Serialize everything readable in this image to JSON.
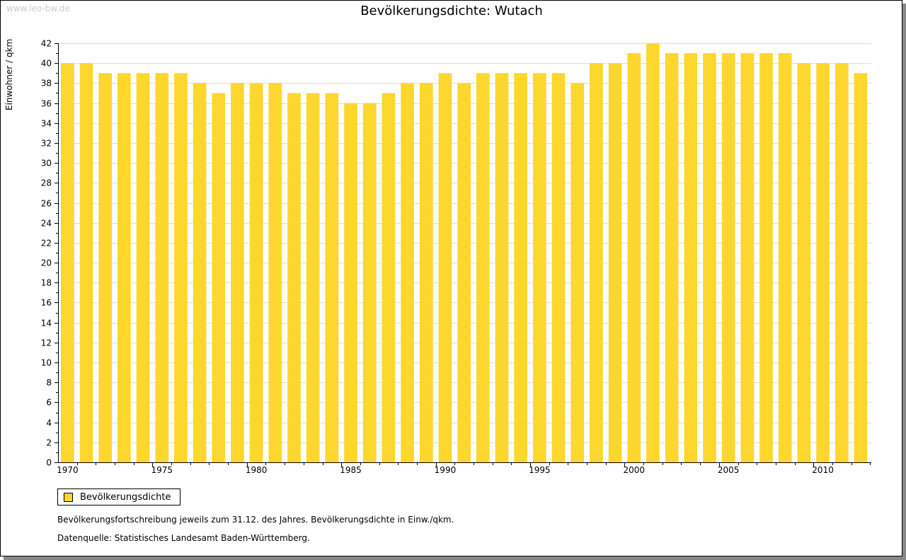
{
  "watermark": "www.leo-bw.de",
  "chart_data": {
    "type": "bar",
    "title": "Bevölkerungsdichte: Wutach",
    "xlabel": "",
    "ylabel": "Einwohner / qkm",
    "ylim": [
      0,
      42
    ],
    "yticks": [
      0,
      2,
      4,
      6,
      8,
      10,
      12,
      14,
      16,
      18,
      20,
      22,
      24,
      26,
      28,
      30,
      32,
      34,
      36,
      38,
      40,
      42
    ],
    "xtick_labels": [
      "1970",
      "1975",
      "1980",
      "1985",
      "1990",
      "1995",
      "2000",
      "2005",
      "2010"
    ],
    "grid": true,
    "legend_placement": "bottom-left",
    "color": "#fdd72e",
    "categories": [
      1970,
      1971,
      1972,
      1973,
      1974,
      1975,
      1976,
      1977,
      1978,
      1979,
      1980,
      1981,
      1982,
      1983,
      1984,
      1985,
      1986,
      1987,
      1988,
      1989,
      1990,
      1991,
      1992,
      1993,
      1994,
      1995,
      1996,
      1997,
      1998,
      1999,
      2000,
      2001,
      2002,
      2003,
      2004,
      2005,
      2006,
      2007,
      2008,
      2009,
      2010,
      2011,
      2012
    ],
    "series": [
      {
        "name": "Bevölkerungsdichte",
        "values": [
          40,
          40,
          39,
          39,
          39,
          39,
          39,
          38,
          37,
          38,
          38,
          38,
          37,
          37,
          37,
          36,
          36,
          37,
          38,
          38,
          39,
          38,
          39,
          39,
          39,
          39,
          39,
          38,
          40,
          40,
          41,
          42,
          41,
          41,
          41,
          41,
          41,
          41,
          41,
          40,
          40,
          40,
          39
        ]
      }
    ]
  },
  "notes": [
    "Bevölkerungsfortschreibung jeweils zum 31.12. des Jahres. Bevölkerungsdichte in Einw./qkm.",
    "Datenquelle: Statistisches Landesamt Baden-Württemberg."
  ]
}
